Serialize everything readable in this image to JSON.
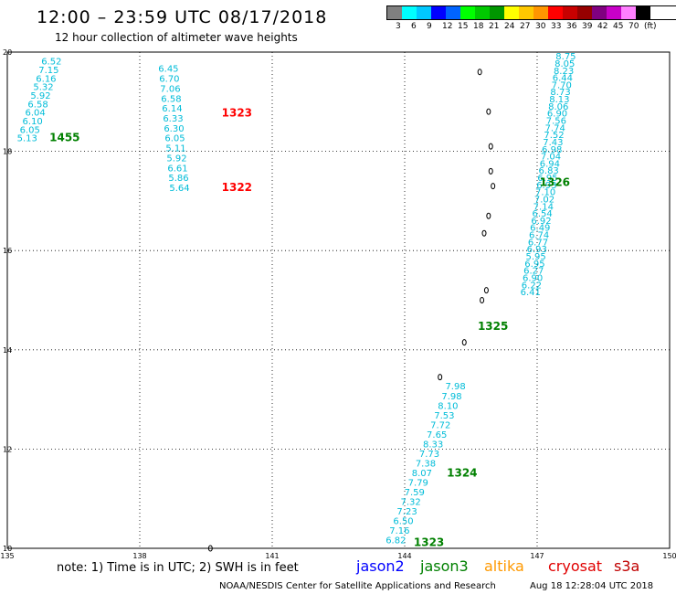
{
  "header": {
    "title": "12:00 – 23:59 UTC 08/17/2018",
    "subtitle": "12 hour collection of altimeter wave heights"
  },
  "legend": {
    "unit": "(ft)",
    "colors": [
      "#808080",
      "#00ffff",
      "#00c8ff",
      "#0000ff",
      "#0064ff",
      "#00ff00",
      "#00c800",
      "#009600",
      "#ffff00",
      "#ffc800",
      "#ff9600",
      "#ff0000",
      "#c80000",
      "#960000",
      "#800080",
      "#c800c8",
      "#ff80ff",
      "#000000"
    ],
    "labels": [
      "3",
      "6",
      "9",
      "12",
      "15",
      "18",
      "21",
      "24",
      "27",
      "30",
      "33",
      "36",
      "39",
      "42",
      "45",
      "70"
    ]
  },
  "axes": {
    "lon_labels": [
      "135",
      "138",
      "141",
      "144",
      "147",
      "150"
    ],
    "lat_labels": [
      "20",
      "18",
      "16",
      "14",
      "12",
      "10"
    ],
    "lon_range": [
      135,
      150
    ],
    "lat_range": [
      10,
      20
    ]
  },
  "tracks": [
    {
      "id": "nw",
      "color": "#00bcd8",
      "start": [
        136.0,
        19.75
      ],
      "end": [
        135.45,
        18.2
      ],
      "values": [
        "6.52",
        "7.15",
        "6.16",
        "5.32",
        "5.92",
        "6.58",
        "6.04",
        "6.10",
        "6.05",
        "5.13"
      ]
    },
    {
      "id": "middle",
      "color": "#00bcd8",
      "start": [
        138.65,
        19.6
      ],
      "end": [
        138.9,
        17.2
      ],
      "values": [
        "6.45",
        "6.70",
        "7.06",
        "6.58",
        "6.14",
        "6.33",
        "6.30",
        "6.05",
        "5.11",
        "5.92",
        "6.61",
        "5.86",
        "5.64"
      ]
    },
    {
      "id": "east-north",
      "color": "#00bcd8",
      "start": [
        147.65,
        19.85
      ],
      "end": [
        146.85,
        15.1
      ],
      "values": [
        "8.75",
        "8.05",
        "8.23",
        "6.44",
        "7.70",
        "8.73",
        "8.13",
        "8.06",
        "6.90",
        "7.56",
        "7.74",
        "7.52",
        "7.43",
        "6.98",
        "7.04",
        "6.94",
        "6.83",
        "6.95",
        "6.93",
        "7.10",
        "7.02",
        "7.14",
        "6.54",
        "6.92",
        "6.49",
        "6.74",
        "6.77",
        "6.93",
        "5.95",
        "6.95",
        "6.27",
        "6.90",
        "6.22",
        "6.41"
      ]
    },
    {
      "id": "east-south",
      "color": "#00bcd8",
      "start": [
        145.15,
        13.2
      ],
      "end": [
        143.8,
        10.1
      ],
      "values": [
        "7.98",
        "7.98",
        "8.10",
        "7.53",
        "7.72",
        "7.65",
        "8.33",
        "7.73",
        "7.38",
        "8.07",
        "7.79",
        "7.59",
        "7.32",
        "7.23",
        "6.50",
        "7.16",
        "6.82"
      ]
    }
  ],
  "pass_labels": [
    {
      "text": "1455",
      "color": "#008000",
      "lon": 136.3,
      "lat": 18.2
    },
    {
      "text": "1323",
      "color": "#ff0000",
      "lon": 140.2,
      "lat": 18.7
    },
    {
      "text": "1322",
      "color": "#ff0000",
      "lon": 140.2,
      "lat": 17.2
    },
    {
      "text": "1326",
      "color": "#008000",
      "lon": 147.4,
      "lat": 17.3
    },
    {
      "text": "1325",
      "color": "#008000",
      "lon": 146.0,
      "lat": 14.4
    },
    {
      "text": "1324",
      "color": "#008000",
      "lon": 145.3,
      "lat": 11.45
    },
    {
      "text": "1323",
      "color": "#008000",
      "lon": 144.55,
      "lat": 10.05
    }
  ],
  "islands": [
    {
      "lon": 145.7,
      "lat": 19.6
    },
    {
      "lon": 145.9,
      "lat": 18.8
    },
    {
      "lon": 145.95,
      "lat": 18.1
    },
    {
      "lon": 145.95,
      "lat": 17.6
    },
    {
      "lon": 146.0,
      "lat": 17.3
    },
    {
      "lon": 145.9,
      "lat": 16.7
    },
    {
      "lon": 145.8,
      "lat": 16.35
    },
    {
      "lon": 145.85,
      "lat": 15.2
    },
    {
      "lon": 145.75,
      "lat": 15.0
    },
    {
      "lon": 145.35,
      "lat": 14.15
    },
    {
      "lon": 144.8,
      "lat": 13.45
    },
    {
      "lon": 139.6,
      "lat": 10.0
    }
  ],
  "footer": {
    "note": "note: 1) Time is in UTC; 2) SWH is in feet",
    "satellites": [
      {
        "name": "jason2",
        "color": "#0000ff"
      },
      {
        "name": "jason3",
        "color": "#008000"
      },
      {
        "name": "altika",
        "color": "#ff9900"
      },
      {
        "name": "cryosat",
        "color": "#e00000"
      },
      {
        "name": "s3a",
        "color": "#c00000"
      }
    ],
    "credit": "NOAA/NESDIS Center for Satellite Applications and Research",
    "timestamp": "Aug 18 12:28:04 UTC 2018"
  }
}
